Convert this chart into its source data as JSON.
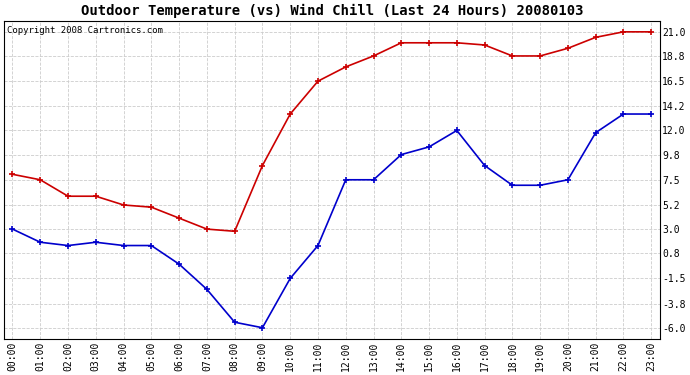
{
  "title": "Outdoor Temperature (vs) Wind Chill (Last 24 Hours) 20080103",
  "copyright": "Copyright 2008 Cartronics.com",
  "hours": [
    "00:00",
    "01:00",
    "02:00",
    "03:00",
    "04:00",
    "05:00",
    "06:00",
    "07:00",
    "08:00",
    "09:00",
    "10:00",
    "11:00",
    "12:00",
    "13:00",
    "14:00",
    "15:00",
    "16:00",
    "17:00",
    "18:00",
    "19:00",
    "20:00",
    "21:00",
    "22:00",
    "23:00"
  ],
  "temp": [
    8.0,
    7.5,
    6.0,
    6.0,
    5.2,
    5.0,
    4.0,
    3.0,
    2.8,
    8.8,
    13.5,
    16.5,
    17.8,
    18.8,
    20.0,
    20.0,
    20.0,
    19.8,
    18.8,
    18.8,
    19.5,
    20.5,
    21.0,
    21.0
  ],
  "windchill": [
    3.0,
    1.8,
    1.5,
    1.8,
    1.5,
    1.5,
    -0.2,
    -2.5,
    -5.5,
    -6.0,
    -1.5,
    1.5,
    7.5,
    7.5,
    9.8,
    10.5,
    12.0,
    8.8,
    7.0,
    7.0,
    7.5,
    11.8,
    13.5,
    13.5
  ],
  "temp_color": "#cc0000",
  "windchill_color": "#0000cc",
  "bg_color": "#ffffff",
  "grid_color": "#cccccc",
  "yticks": [
    -6.0,
    -3.8,
    -1.5,
    0.8,
    3.0,
    5.2,
    7.5,
    9.8,
    12.0,
    14.2,
    16.5,
    18.8,
    21.0
  ],
  "ymin": -7.0,
  "ymax": 22.0,
  "title_fontsize": 10,
  "copyright_fontsize": 6.5,
  "tick_fontsize": 7,
  "figwidth": 6.9,
  "figheight": 3.75,
  "dpi": 100
}
